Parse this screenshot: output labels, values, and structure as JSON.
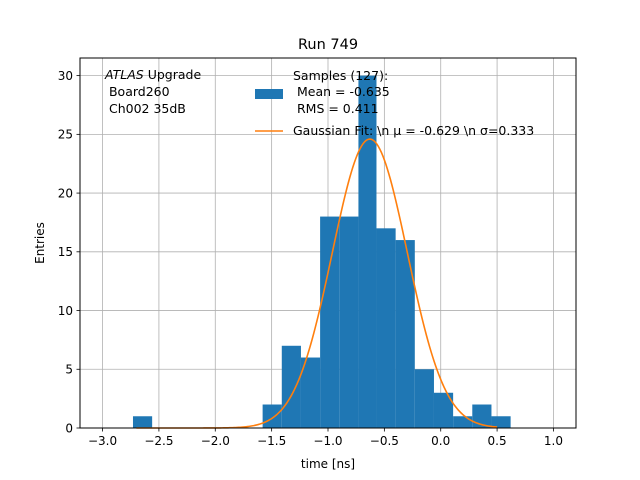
{
  "chart_data": {
    "type": "bar",
    "title": "Run 749",
    "xlabel": "time [ns]",
    "ylabel": "Entries",
    "xlim": [
      -3.2,
      1.2
    ],
    "ylim": [
      0,
      31.5
    ],
    "grid": true,
    "x_ticks": [
      -3.0,
      -2.5,
      -2.0,
      -1.5,
      -1.0,
      -0.5,
      0.0,
      0.5,
      1.0
    ],
    "x_tick_labels": [
      "−3.0",
      "−2.5",
      "−2.0",
      "−1.5",
      "−1.0",
      "−0.5",
      "0.0",
      "0.5",
      "1.0"
    ],
    "y_ticks": [
      0,
      5,
      10,
      15,
      20,
      25,
      30
    ],
    "y_tick_labels": [
      "0",
      "5",
      "10",
      "15",
      "20",
      "25",
      "30"
    ],
    "bar_color": "#1f77b4",
    "fit_color": "#ff7f0e",
    "histogram": {
      "bin_edges": [
        -2.73,
        -2.56,
        -1.58,
        -1.41,
        -1.24,
        -1.07,
        -0.9,
        -0.73,
        -0.57,
        -0.4,
        -0.23,
        -0.06,
        0.11,
        0.28,
        0.45,
        0.62
      ],
      "counts": [
        1,
        0,
        2,
        7,
        6,
        18,
        18,
        30,
        17,
        16,
        5,
        3,
        1,
        2,
        1
      ]
    },
    "fit": {
      "type": "gaussian",
      "amplitude": 24.6,
      "mu": -0.629,
      "sigma": 0.333,
      "x_range": [
        -2.7,
        0.5
      ]
    },
    "legend": {
      "placement": "top-center",
      "entries": [
        {
          "label_lines": [
            "Samples (127):",
            " Mean = -0.635",
            " RMS = 0.411"
          ],
          "marker": "patch",
          "color": "#1f77b4"
        },
        {
          "label_lines": [
            "Gaussian Fit: \\n μ = -0.629 \\n σ=0.333"
          ],
          "marker": "line",
          "color": "#ff7f0e"
        }
      ]
    },
    "annotation": {
      "italic": "ATLAS",
      "line1_rest": " Upgrade",
      "line2": " Board260",
      "line3": " Ch002 35dB"
    }
  }
}
